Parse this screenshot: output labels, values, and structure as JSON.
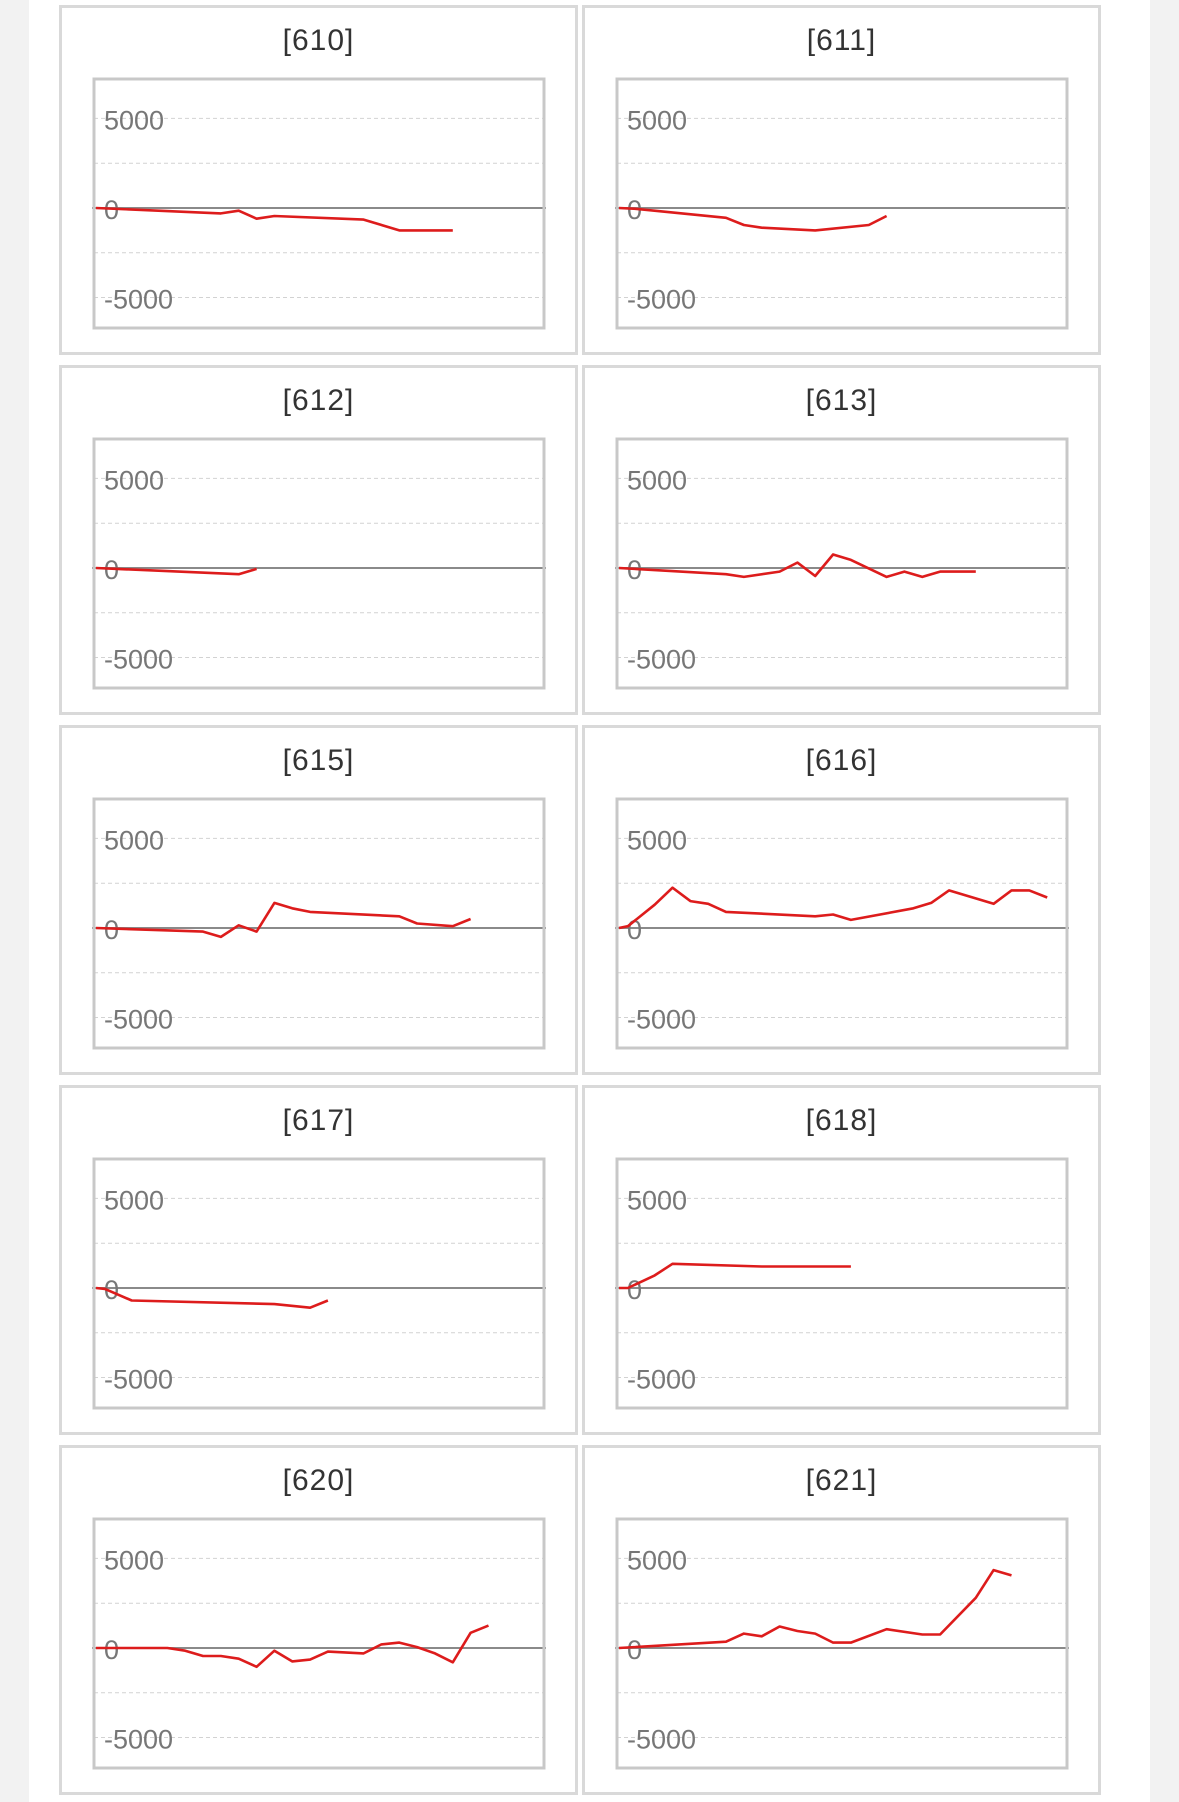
{
  "colors": {
    "line": "#dd1c1c",
    "frame": "#c8c8c8",
    "zero_line": "#8a8a8a",
    "grid": "#d2d2d2",
    "tick_label": "#777777"
  },
  "chart_data": [
    {
      "type": "line",
      "title": "[610]",
      "ylim": [
        -6700,
        7200
      ],
      "yticks": [
        5000,
        0,
        -5000
      ],
      "grid": true,
      "x": [
        0,
        14,
        16,
        18,
        20,
        30,
        34,
        36,
        40
      ],
      "values": [
        0,
        -300,
        -150,
        -600,
        -450,
        -650,
        -1250,
        -1250,
        -1250
      ]
    },
    {
      "type": "line",
      "title": "[611]",
      "ylim": [
        -6700,
        7200
      ],
      "yticks": [
        5000,
        0,
        -5000
      ],
      "grid": true,
      "x": [
        0,
        2,
        12,
        14,
        16,
        22,
        28,
        30
      ],
      "values": [
        0,
        -50,
        -550,
        -950,
        -1100,
        -1250,
        -950,
        -450
      ]
    },
    {
      "type": "line",
      "title": "[612]",
      "ylim": [
        -6700,
        7200
      ],
      "yticks": [
        5000,
        0,
        -5000
      ],
      "grid": true,
      "x": [
        0,
        16,
        18
      ],
      "values": [
        0,
        -350,
        -50
      ]
    },
    {
      "type": "line",
      "title": "[613]",
      "ylim": [
        -6700,
        7200
      ],
      "yticks": [
        5000,
        0,
        -5000
      ],
      "grid": true,
      "x": [
        0,
        12,
        14,
        18,
        20,
        22,
        24,
        26,
        30,
        32,
        34,
        36,
        40
      ],
      "values": [
        0,
        -350,
        -500,
        -200,
        300,
        -450,
        750,
        450,
        -500,
        -200,
        -500,
        -200,
        -200
      ]
    },
    {
      "type": "line",
      "title": "[615]",
      "ylim": [
        -6700,
        7200
      ],
      "yticks": [
        5000,
        0,
        -5000
      ],
      "grid": true,
      "x": [
        0,
        12,
        14,
        16,
        18,
        20,
        22,
        24,
        34,
        36,
        40,
        42
      ],
      "values": [
        0,
        -200,
        -500,
        150,
        -200,
        1400,
        1100,
        900,
        650,
        250,
        100,
        500
      ]
    },
    {
      "type": "line",
      "title": "[616]",
      "ylim": [
        -6700,
        7200
      ],
      "yticks": [
        5000,
        0,
        -5000
      ],
      "grid": true,
      "x": [
        0,
        1,
        4,
        6,
        8,
        10,
        12,
        22,
        24,
        26,
        33,
        35,
        37,
        42,
        44,
        46,
        48
      ],
      "values": [
        0,
        100,
        1300,
        2250,
        1500,
        1350,
        900,
        650,
        750,
        450,
        1100,
        1400,
        2100,
        1350,
        2100,
        2100,
        1700
      ]
    },
    {
      "type": "line",
      "title": "[617]",
      "ylim": [
        -6700,
        7200
      ],
      "yticks": [
        5000,
        0,
        -5000
      ],
      "grid": true,
      "x": [
        0,
        1,
        4,
        20,
        24,
        26
      ],
      "values": [
        0,
        -50,
        -700,
        -900,
        -1100,
        -700
      ]
    },
    {
      "type": "line",
      "title": "[618]",
      "ylim": [
        -6700,
        7200
      ],
      "yticks": [
        5000,
        0,
        -5000
      ],
      "grid": true,
      "x": [
        0,
        1,
        4,
        6,
        16,
        26
      ],
      "values": [
        0,
        0,
        700,
        1350,
        1200,
        1200
      ]
    },
    {
      "type": "line",
      "title": "[620]",
      "ylim": [
        -6700,
        7200
      ],
      "yticks": [
        5000,
        0,
        -5000
      ],
      "grid": true,
      "x": [
        0,
        8,
        10,
        12,
        14,
        16,
        18,
        20,
        22,
        24,
        26,
        30,
        32,
        34,
        36,
        38,
        40,
        42,
        44
      ],
      "values": [
        0,
        0,
        -150,
        -450,
        -450,
        -600,
        -1050,
        -150,
        -750,
        -650,
        -200,
        -300,
        200,
        300,
        50,
        -300,
        -800,
        850,
        1250
      ]
    },
    {
      "type": "line",
      "title": "[621]",
      "ylim": [
        -6700,
        7200
      ],
      "yticks": [
        5000,
        0,
        -5000
      ],
      "grid": true,
      "x": [
        0,
        12,
        14,
        16,
        18,
        20,
        22,
        24,
        26,
        30,
        34,
        36,
        40,
        42,
        44
      ],
      "values": [
        0,
        350,
        800,
        650,
        1200,
        950,
        800,
        300,
        300,
        1050,
        750,
        750,
        2800,
        4350,
        4050
      ]
    }
  ]
}
